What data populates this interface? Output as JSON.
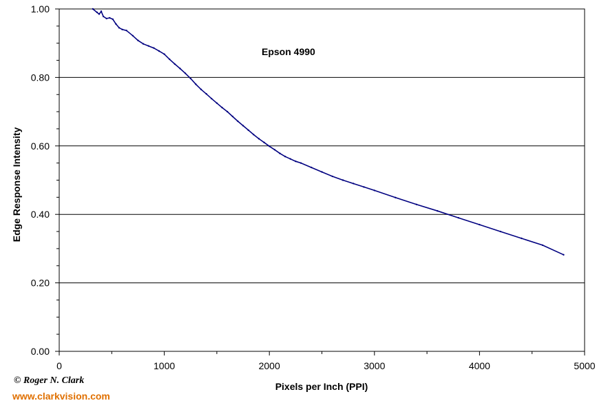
{
  "chart_data": {
    "type": "line",
    "title": "",
    "annotation": "Epson 4990",
    "xlabel": "Pixels per Inch (PPI)",
    "ylabel": "Edge Response Intensity",
    "xlim": [
      0,
      5000
    ],
    "ylim": [
      0.0,
      1.0
    ],
    "x_ticks": [
      0,
      1000,
      2000,
      3000,
      4000,
      5000
    ],
    "x_tick_labels": [
      "0",
      "1000",
      "2000",
      "3000",
      "4000",
      "5000"
    ],
    "y_ticks": [
      0.0,
      0.2,
      0.4,
      0.6,
      0.8,
      1.0
    ],
    "y_tick_labels": [
      "0.00",
      "0.20",
      "0.40",
      "0.60",
      "0.80",
      "1.00"
    ],
    "grid": "horizontal",
    "legend": "none",
    "line_color": "#000080",
    "series": [
      {
        "x": [
          320,
          360,
          380,
          400,
          420,
          450,
          480,
          510,
          540,
          570,
          600,
          640,
          700,
          750,
          800,
          850,
          900,
          950,
          1000,
          1050,
          1100,
          1150,
          1200,
          1250,
          1300,
          1350,
          1400,
          1450,
          1500,
          1550,
          1600,
          1650,
          1700,
          1750,
          1800,
          1850,
          1900,
          1950,
          2000,
          2050,
          2100,
          2150,
          2200,
          2250,
          2300,
          2400,
          2500,
          2600,
          2700,
          2800,
          2900,
          3000,
          3200,
          3400,
          3600,
          3800,
          4000,
          4200,
          4400,
          4600,
          4800
        ],
        "y": [
          1.0,
          0.99,
          0.985,
          0.993,
          0.978,
          0.972,
          0.974,
          0.97,
          0.956,
          0.945,
          0.94,
          0.937,
          0.922,
          0.908,
          0.898,
          0.892,
          0.886,
          0.877,
          0.868,
          0.853,
          0.839,
          0.826,
          0.812,
          0.797,
          0.78,
          0.765,
          0.752,
          0.738,
          0.725,
          0.712,
          0.7,
          0.686,
          0.672,
          0.659,
          0.646,
          0.633,
          0.621,
          0.61,
          0.599,
          0.589,
          0.578,
          0.569,
          0.562,
          0.555,
          0.55,
          0.537,
          0.524,
          0.511,
          0.5,
          0.49,
          0.48,
          0.47,
          0.449,
          0.429,
          0.41,
          0.39,
          0.37,
          0.35,
          0.33,
          0.31,
          0.282
        ]
      }
    ]
  },
  "credit": {
    "author": "© Roger N. Clark",
    "url": "www.clarkvision.com",
    "url_color": "#e07000"
  }
}
